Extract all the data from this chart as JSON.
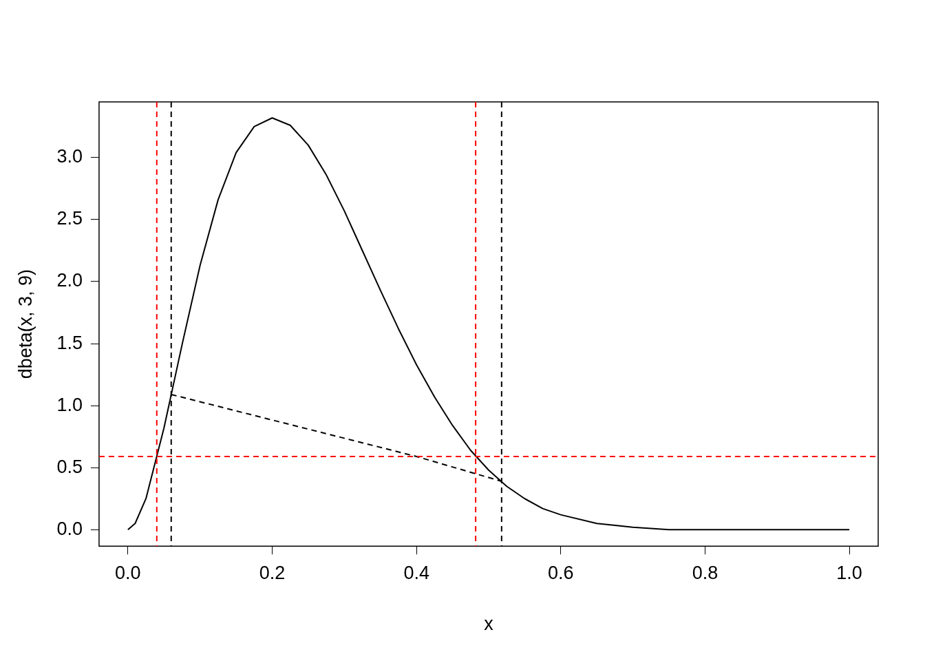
{
  "chart_data": {
    "type": "line",
    "xlabel": "x",
    "ylabel": "dbeta(x, 3, 9)",
    "xlim": [
      -0.04,
      1.04
    ],
    "ylim": [
      -0.133,
      3.449
    ],
    "xticks": [
      {
        "value": 0,
        "label": "0.0"
      },
      {
        "value": 0.2,
        "label": "0.2"
      },
      {
        "value": 0.4,
        "label": "0.4"
      },
      {
        "value": 0.6,
        "label": "0.6"
      },
      {
        "value": 0.8,
        "label": "0.8"
      },
      {
        "value": 1,
        "label": "1.0"
      }
    ],
    "yticks": [
      {
        "value": 0,
        "label": "0.0"
      },
      {
        "value": 0.5,
        "label": "0.5"
      },
      {
        "value": 1,
        "label": "1.0"
      },
      {
        "value": 1.5,
        "label": "1.5"
      },
      {
        "value": 2,
        "label": "2.0"
      },
      {
        "value": 2.5,
        "label": "2.5"
      },
      {
        "value": 3,
        "label": "3.0"
      }
    ],
    "grid": false,
    "legend": false,
    "marker": "none",
    "x": [
      0,
      0.01,
      0.025,
      0.05,
      0.075,
      0.1,
      0.125,
      0.15,
      0.175,
      0.2,
      0.225,
      0.25,
      0.275,
      0.3,
      0.325,
      0.35,
      0.375,
      0.4,
      0.425,
      0.45,
      0.475,
      0.5,
      0.525,
      0.55,
      0.575,
      0.6,
      0.65,
      0.7,
      0.75,
      0.8,
      0.85,
      0.9,
      0.95,
      1
    ],
    "series": [
      {
        "color": "#000000",
        "line_style": "solid",
        "values": [
          0,
          0.05,
          0.25,
          0.82,
          1.49,
          2.13,
          2.66,
          3.04,
          3.25,
          3.32,
          3.26,
          3.1,
          2.86,
          2.57,
          2.25,
          1.93,
          1.62,
          1.33,
          1.07,
          0.84,
          0.64,
          0.48,
          0.35,
          0.25,
          0.17,
          0.12,
          0.05,
          0.02,
          0,
          0,
          0,
          0,
          0,
          0
        ]
      },
      {
        "color": "#000000",
        "line_style": "dashed",
        "x": [
          0.06,
          0.4,
          0.518
        ],
        "values": [
          1.09,
          0.59,
          0.39
        ]
      }
    ],
    "ref_lines": [
      {
        "axis": "x",
        "value": 0.04,
        "color": "#ff0000",
        "line_style": "dashed"
      },
      {
        "axis": "x",
        "value": 0.06,
        "color": "#000000",
        "line_style": "dashed"
      },
      {
        "axis": "x",
        "value": 0.482,
        "color": "#ff0000",
        "line_style": "dashed"
      },
      {
        "axis": "x",
        "value": 0.518,
        "color": "#000000",
        "line_style": "dashed"
      },
      {
        "axis": "y",
        "value": 0.59,
        "color": "#ff0000",
        "line_style": "dashed"
      }
    ]
  }
}
